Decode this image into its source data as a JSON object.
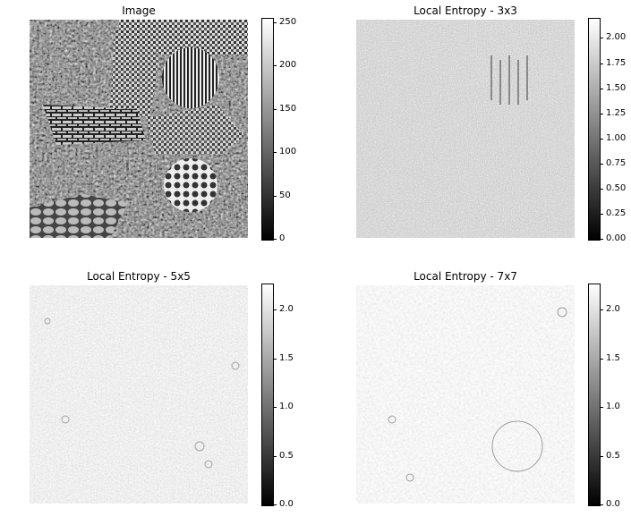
{
  "panels": [
    {
      "title": "Image",
      "variant": "texture",
      "colorbar_ticks": [
        "250",
        "200",
        "150",
        "100",
        "50",
        "0"
      ],
      "colorbar_values": [
        250,
        200,
        150,
        100,
        50,
        0
      ],
      "colorbar_range": [
        0,
        255
      ]
    },
    {
      "title": "Local Entropy - 3x3",
      "variant": "entropy3",
      "colorbar_ticks": [
        "2.00",
        "1.75",
        "1.50",
        "1.25",
        "1.00",
        "0.75",
        "0.50",
        "0.25",
        "0.00"
      ],
      "colorbar_values": [
        2.0,
        1.75,
        1.5,
        1.25,
        1.0,
        0.75,
        0.5,
        0.25,
        0.0
      ],
      "colorbar_range": [
        0,
        2.2
      ]
    },
    {
      "title": "Local Entropy - 5x5",
      "variant": "entropy5",
      "colorbar_ticks": [
        "2.0",
        "1.5",
        "1.0",
        "0.5",
        "0.0"
      ],
      "colorbar_values": [
        2.0,
        1.5,
        1.0,
        0.5,
        0.0
      ],
      "colorbar_range": [
        0,
        2.27
      ]
    },
    {
      "title": "Local Entropy - 7x7",
      "variant": "entropy7",
      "colorbar_ticks": [
        "2.0",
        "1.5",
        "1.0",
        "0.5",
        "0.0"
      ],
      "colorbar_values": [
        2.0,
        1.5,
        1.0,
        0.5,
        0.0
      ],
      "colorbar_range": [
        0,
        2.27
      ]
    }
  ],
  "colormap": {
    "low": "#000000",
    "high": "#ffffff"
  }
}
